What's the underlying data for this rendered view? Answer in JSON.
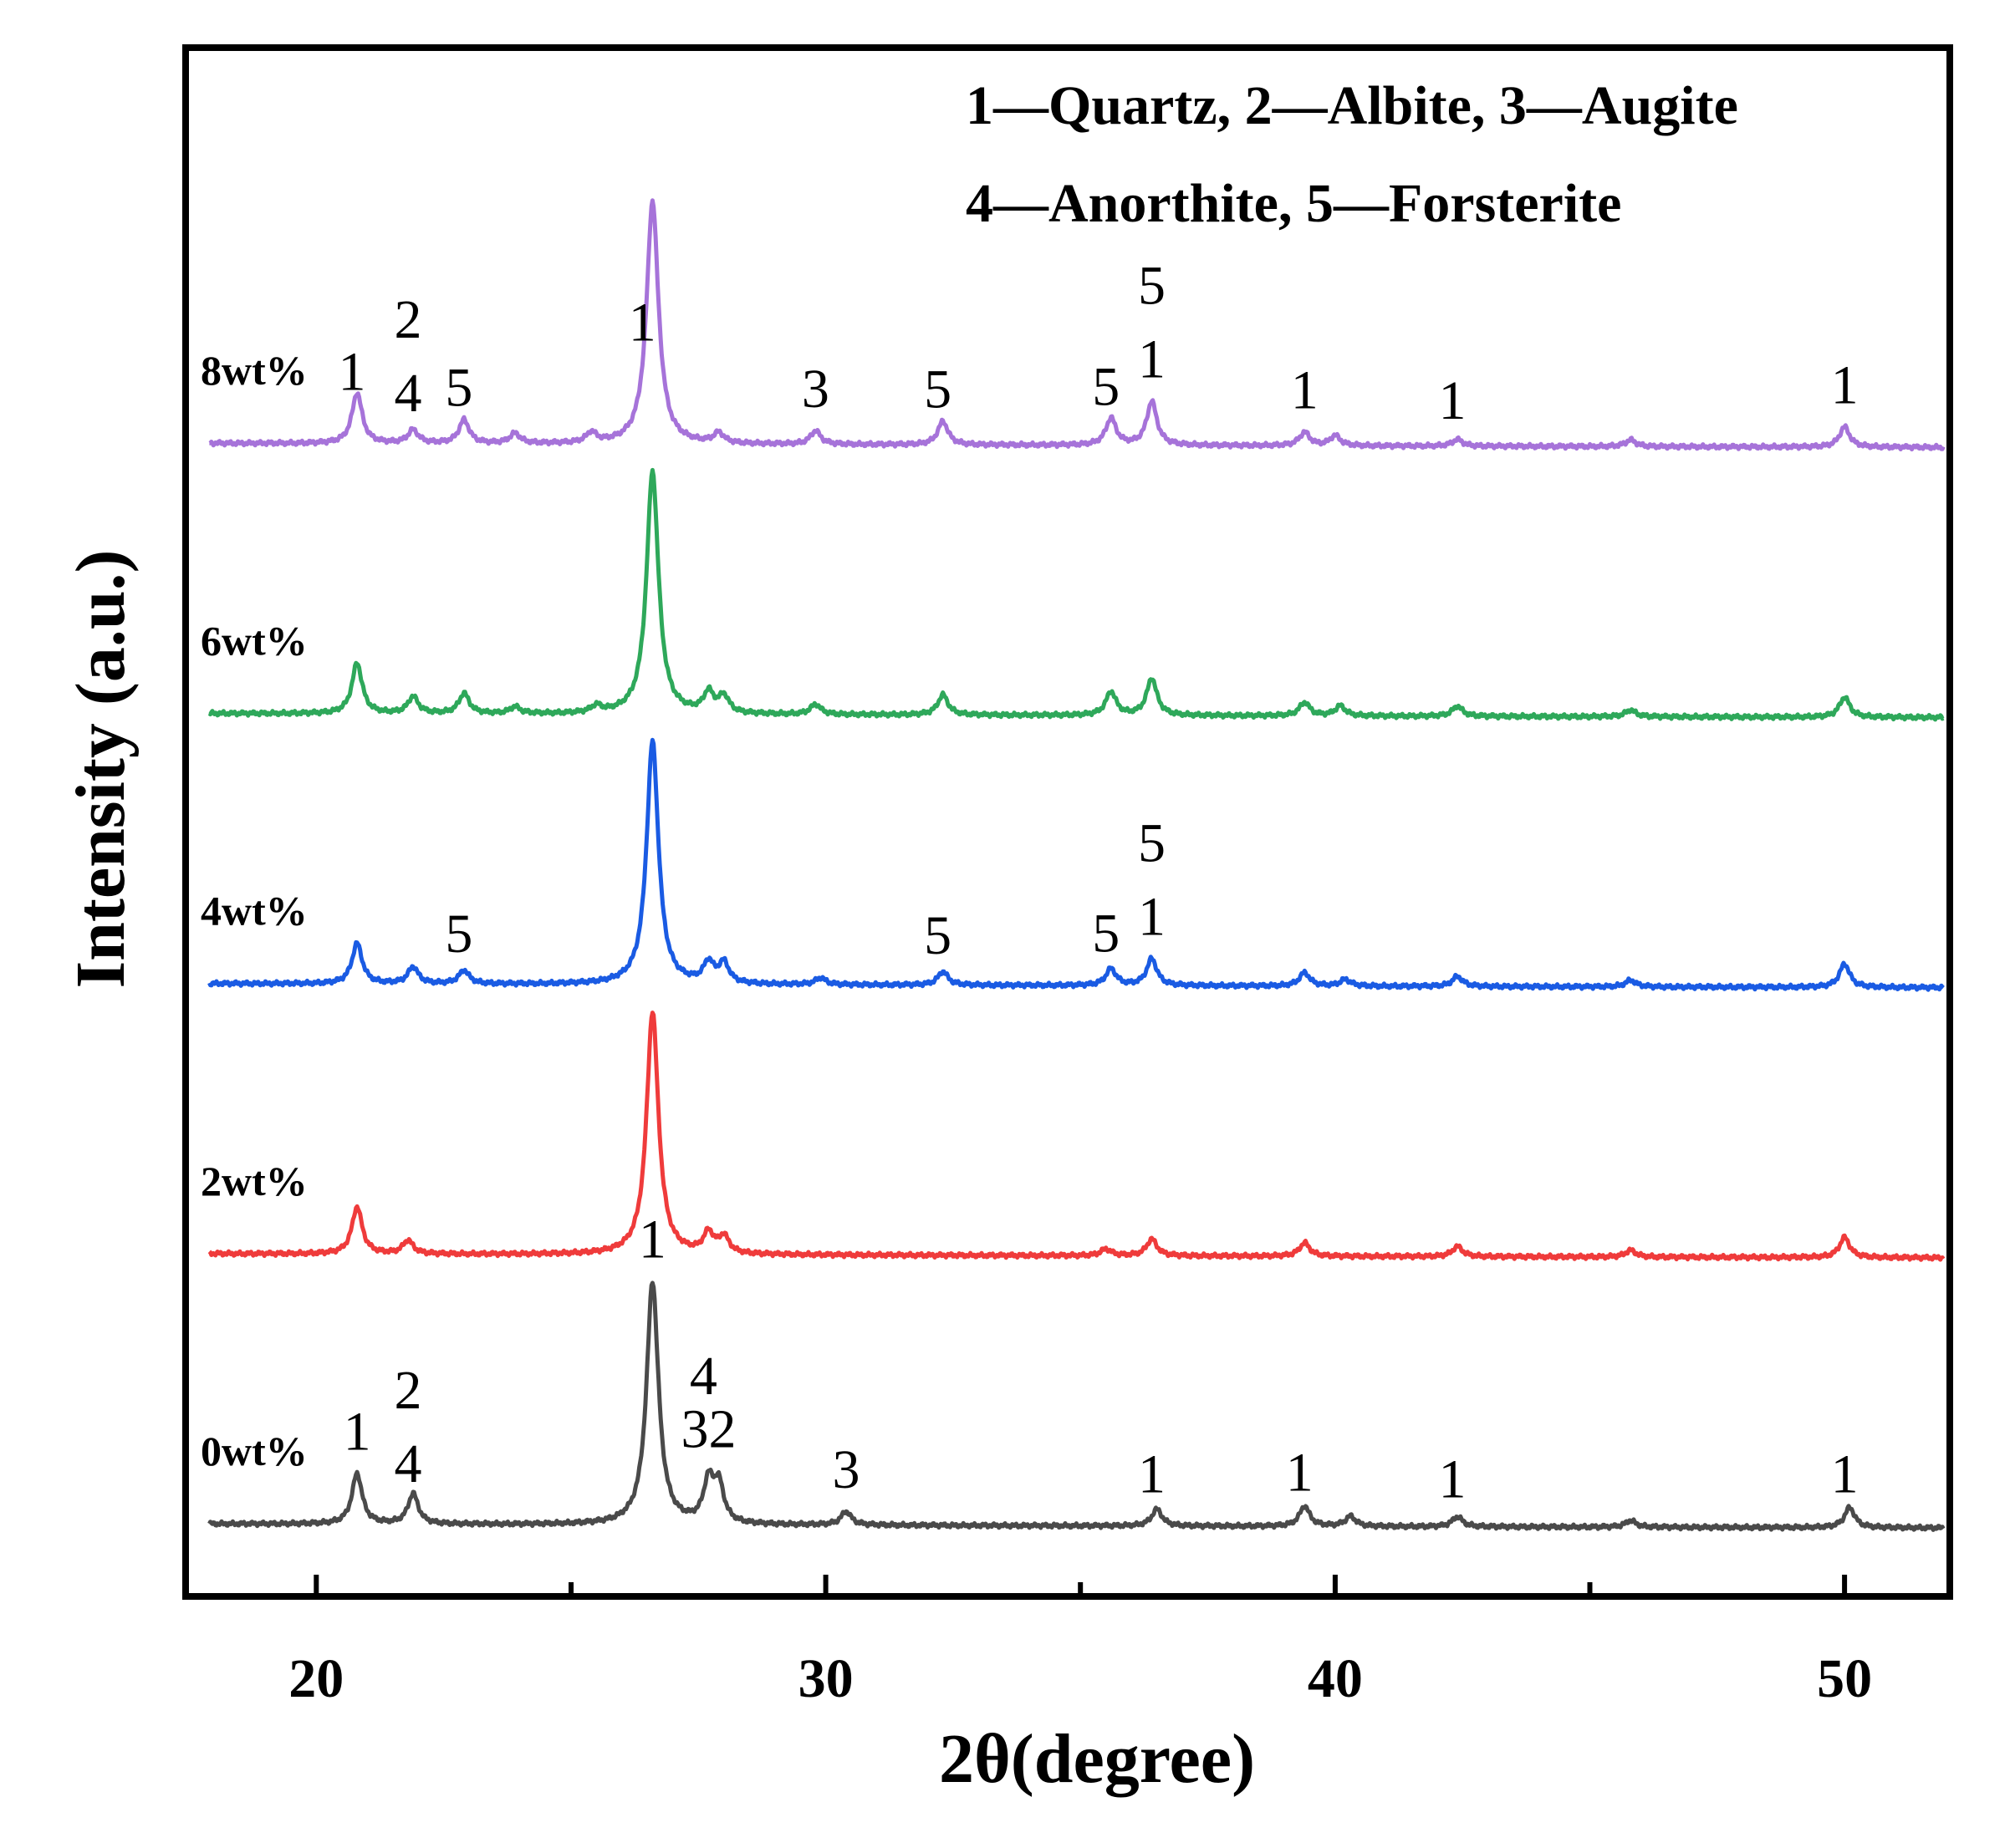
{
  "chart_data": {
    "type": "line",
    "title": "",
    "xlabel": "2θ(degree)",
    "ylabel": "Intensity (a.u.)",
    "xlim": [
      17.5,
      52
    ],
    "x_ticks": [
      20,
      30,
      40,
      50
    ],
    "legend": {
      "placement": "top-right",
      "lines": [
        "1—Quartz, 2—Albite, 3—Augite",
        "4—Anorthite, 5—Forsterite"
      ]
    },
    "series": [
      {
        "name": "0wt%",
        "color": "#4a4a4a",
        "baseline": 0,
        "peaks": [
          {
            "x": 20.8,
            "h": 0.15
          },
          {
            "x": 21.9,
            "h": 0.09
          },
          {
            "x": 26.6,
            "h": 0.72
          },
          {
            "x": 27.7,
            "h": 0.12
          },
          {
            "x": 27.9,
            "h": 0.11
          },
          {
            "x": 30.4,
            "h": 0.04
          },
          {
            "x": 36.5,
            "h": 0.05
          },
          {
            "x": 39.4,
            "h": 0.06
          },
          {
            "x": 40.3,
            "h": 0.03
          },
          {
            "x": 42.4,
            "h": 0.03
          },
          {
            "x": 45.8,
            "h": 0.02
          },
          {
            "x": 50.1,
            "h": 0.06
          }
        ]
      },
      {
        "name": "2wt%",
        "color": "#ef3b3b",
        "baseline": 0.8,
        "peaks": [
          {
            "x": 20.8,
            "h": 0.14
          },
          {
            "x": 21.8,
            "h": 0.04
          },
          {
            "x": 26.6,
            "h": 0.72
          },
          {
            "x": 27.7,
            "h": 0.06
          },
          {
            "x": 28.0,
            "h": 0.05
          },
          {
            "x": 35.5,
            "h": 0.02
          },
          {
            "x": 36.4,
            "h": 0.05
          },
          {
            "x": 39.4,
            "h": 0.04
          },
          {
            "x": 42.4,
            "h": 0.03
          },
          {
            "x": 45.8,
            "h": 0.02
          },
          {
            "x": 50.0,
            "h": 0.06
          }
        ]
      },
      {
        "name": "4wt%",
        "color": "#1a5be3",
        "baseline": 1.6,
        "peaks": [
          {
            "x": 20.8,
            "h": 0.12
          },
          {
            "x": 21.9,
            "h": 0.05
          },
          {
            "x": 22.9,
            "h": 0.04
          },
          {
            "x": 26.6,
            "h": 0.72
          },
          {
            "x": 27.7,
            "h": 0.06
          },
          {
            "x": 28.0,
            "h": 0.06
          },
          {
            "x": 29.9,
            "h": 0.02
          },
          {
            "x": 32.3,
            "h": 0.04
          },
          {
            "x": 35.6,
            "h": 0.05
          },
          {
            "x": 36.4,
            "h": 0.08
          },
          {
            "x": 39.4,
            "h": 0.04
          },
          {
            "x": 40.2,
            "h": 0.02
          },
          {
            "x": 42.4,
            "h": 0.03
          },
          {
            "x": 45.8,
            "h": 0.02
          },
          {
            "x": 50.0,
            "h": 0.07
          }
        ]
      },
      {
        "name": "6wt%",
        "color": "#2ea85a",
        "baseline": 2.4,
        "peaks": [
          {
            "x": 20.8,
            "h": 0.15
          },
          {
            "x": 21.9,
            "h": 0.05
          },
          {
            "x": 22.9,
            "h": 0.06
          },
          {
            "x": 23.9,
            "h": 0.02
          },
          {
            "x": 25.5,
            "h": 0.02
          },
          {
            "x": 26.6,
            "h": 0.72
          },
          {
            "x": 27.7,
            "h": 0.06
          },
          {
            "x": 28.0,
            "h": 0.05
          },
          {
            "x": 29.8,
            "h": 0.03
          },
          {
            "x": 32.3,
            "h": 0.06
          },
          {
            "x": 35.6,
            "h": 0.07
          },
          {
            "x": 36.4,
            "h": 0.11
          },
          {
            "x": 39.4,
            "h": 0.04
          },
          {
            "x": 40.1,
            "h": 0.03
          },
          {
            "x": 42.4,
            "h": 0.03
          },
          {
            "x": 45.8,
            "h": 0.02
          },
          {
            "x": 50.0,
            "h": 0.06
          }
        ]
      },
      {
        "name": "8wt%",
        "color": "#a673d9",
        "baseline": 3.2,
        "peaks": [
          {
            "x": 20.8,
            "h": 0.15
          },
          {
            "x": 21.9,
            "h": 0.04
          },
          {
            "x": 22.9,
            "h": 0.07
          },
          {
            "x": 23.9,
            "h": 0.03
          },
          {
            "x": 25.4,
            "h": 0.03
          },
          {
            "x": 26.6,
            "h": 0.72
          },
          {
            "x": 27.9,
            "h": 0.03
          },
          {
            "x": 29.8,
            "h": 0.04
          },
          {
            "x": 32.3,
            "h": 0.07
          },
          {
            "x": 35.6,
            "h": 0.08
          },
          {
            "x": 36.4,
            "h": 0.13
          },
          {
            "x": 39.4,
            "h": 0.04
          },
          {
            "x": 40.0,
            "h": 0.03
          },
          {
            "x": 42.4,
            "h": 0.02
          },
          {
            "x": 45.8,
            "h": 0.02
          },
          {
            "x": 50.0,
            "h": 0.06
          }
        ]
      }
    ],
    "annotations": [
      {
        "series": "0wt%",
        "x": 20.8,
        "text": "1"
      },
      {
        "series": "0wt%",
        "x": 21.8,
        "text": "4"
      },
      {
        "series": "0wt%",
        "x": 21.8,
        "text": "2",
        "stack": 1
      },
      {
        "series": "0wt%",
        "x": 26.6,
        "text": "1"
      },
      {
        "series": "0wt%",
        "x": 27.7,
        "text": "32"
      },
      {
        "series": "0wt%",
        "x": 27.6,
        "text": "4",
        "stack": 1
      },
      {
        "series": "0wt%",
        "x": 30.4,
        "text": "3"
      },
      {
        "series": "0wt%",
        "x": 36.4,
        "text": "1"
      },
      {
        "series": "0wt%",
        "x": 39.3,
        "text": "1"
      },
      {
        "series": "0wt%",
        "x": 42.3,
        "text": "1"
      },
      {
        "series": "0wt%",
        "x": 50.0,
        "text": "1"
      },
      {
        "series": "4wt%",
        "x": 22.8,
        "text": "5"
      },
      {
        "series": "4wt%",
        "x": 32.2,
        "text": "5"
      },
      {
        "series": "4wt%",
        "x": 35.5,
        "text": "5"
      },
      {
        "series": "4wt%",
        "x": 36.4,
        "text": "1"
      },
      {
        "series": "4wt%",
        "x": 36.4,
        "text": "5",
        "stack": 1
      },
      {
        "series": "8wt%",
        "x": 20.7,
        "text": "1"
      },
      {
        "series": "8wt%",
        "x": 21.8,
        "text": "4"
      },
      {
        "series": "8wt%",
        "x": 21.8,
        "text": "2",
        "stack": 1
      },
      {
        "series": "8wt%",
        "x": 22.8,
        "text": "5"
      },
      {
        "series": "8wt%",
        "x": 26.4,
        "text": "1"
      },
      {
        "series": "8wt%",
        "x": 29.8,
        "text": "3"
      },
      {
        "series": "8wt%",
        "x": 32.2,
        "text": "5"
      },
      {
        "series": "8wt%",
        "x": 35.5,
        "text": "5"
      },
      {
        "series": "8wt%",
        "x": 36.4,
        "text": "1"
      },
      {
        "series": "8wt%",
        "x": 36.4,
        "text": "5",
        "stack": 1
      },
      {
        "series": "8wt%",
        "x": 39.4,
        "text": "1"
      },
      {
        "series": "8wt%",
        "x": 42.3,
        "text": "1"
      },
      {
        "series": "8wt%",
        "x": 50.0,
        "text": "1"
      }
    ]
  }
}
